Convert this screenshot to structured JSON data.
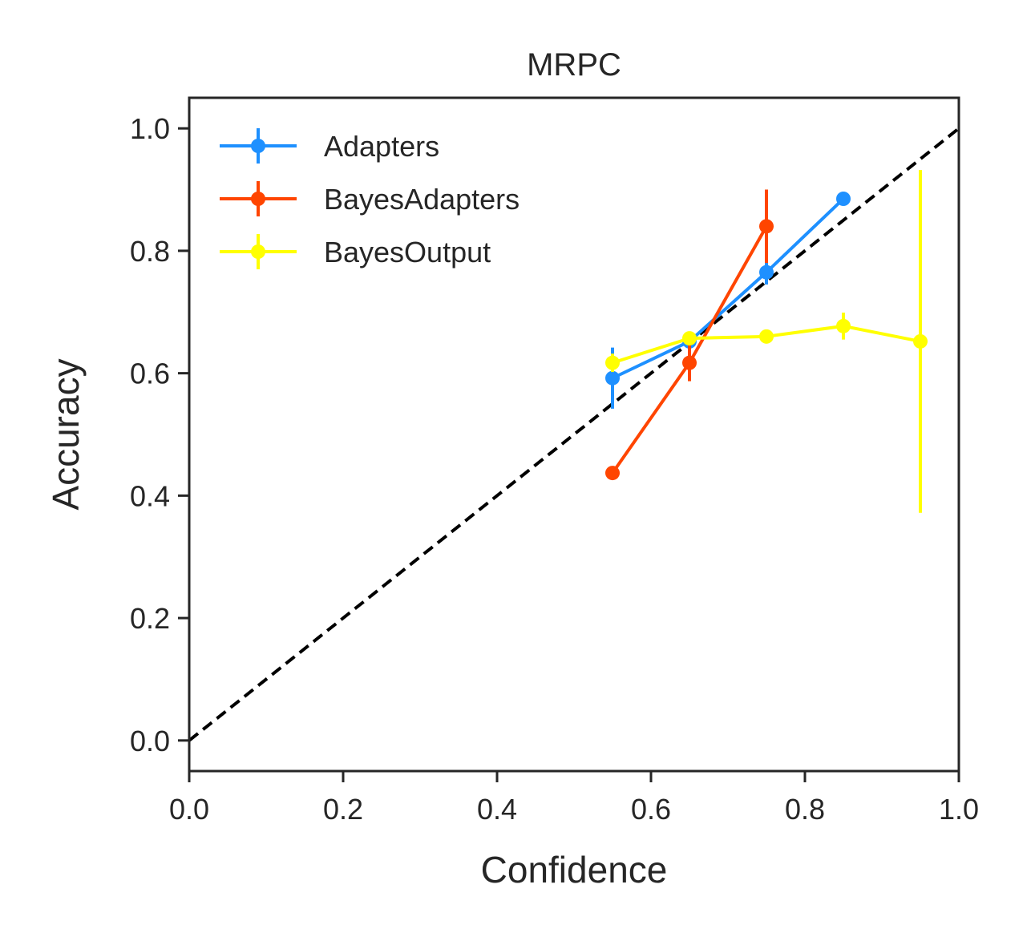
{
  "chart_data": {
    "type": "line",
    "title": "MRPC",
    "xlabel": "Confidence",
    "ylabel": "Accuracy",
    "xlim": [
      0.0,
      1.0
    ],
    "ylim": [
      -0.05,
      1.05
    ],
    "xticks": [
      "0.0",
      "0.2",
      "0.4",
      "0.6",
      "0.8",
      "1.0"
    ],
    "yticks": [
      "0.0",
      "0.2",
      "0.4",
      "0.6",
      "0.8",
      "1.0"
    ],
    "grid": false,
    "legend_position": "top-left",
    "reference_line": {
      "style": "dashed",
      "color": "#000000",
      "x": [
        0,
        1
      ],
      "y": [
        0,
        1
      ]
    },
    "series": [
      {
        "name": "Adapters",
        "color": "#1e90ff",
        "x": [
          0.55,
          0.65,
          0.75,
          0.85
        ],
        "y": [
          0.592,
          0.652,
          0.765,
          0.885
        ],
        "err": [
          0.05,
          0.015,
          0.02,
          0.008
        ]
      },
      {
        "name": "BayesAdapters",
        "color": "#ff4500",
        "x": [
          0.55,
          0.65,
          0.75
        ],
        "y": [
          0.437,
          0.617,
          0.84
        ],
        "err": [
          0.006,
          0.03,
          0.06
        ]
      },
      {
        "name": "BayesOutput",
        "color": "#ffff00",
        "x": [
          0.55,
          0.65,
          0.75,
          0.85,
          0.95
        ],
        "y": [
          0.617,
          0.657,
          0.66,
          0.677,
          0.652
        ],
        "err": [
          0.015,
          0.01,
          0.008,
          0.022,
          0.28
        ]
      }
    ]
  }
}
